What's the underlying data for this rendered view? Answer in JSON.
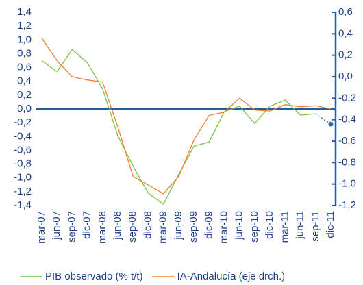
{
  "chart_data": {
    "type": "line",
    "categories": [
      "mar-07",
      "jun-07",
      "sep-07",
      "dic-07",
      "mar-08",
      "jun-08",
      "sep-08",
      "dic-08",
      "mar-09",
      "jun-09",
      "sep-09",
      "dic-09",
      "mar-10",
      "jun-10",
      "sep-10",
      "dic-10",
      "mar-11",
      "jun-11",
      "sep-11",
      "dic-11"
    ],
    "series": [
      {
        "name": "PIB observado (% t/t)",
        "color": "#7cc242",
        "values": [
          0.7,
          0.54,
          0.86,
          0.67,
          0.29,
          -0.39,
          -0.83,
          -1.22,
          -1.38,
          -0.95,
          -0.54,
          -0.48,
          -0.04,
          0.04,
          -0.21,
          0.04,
          0.13,
          -0.09,
          -0.07,
          null
        ]
      },
      {
        "name": "IA-Andalucía (eje drch.)",
        "color": "#f07f2f",
        "axis": "y2",
        "values": [
          0.36,
          0.15,
          0.0,
          -0.03,
          -0.05,
          -0.47,
          -0.93,
          -1.01,
          -1.09,
          -0.93,
          -0.59,
          -0.36,
          -0.33,
          -0.2,
          -0.31,
          -0.32,
          -0.26,
          -0.28,
          -0.27,
          -0.3
        ]
      },
      {
        "color": "#1e6fb5",
        "dashed": true,
        "values": [
          null,
          null,
          null,
          null,
          null,
          null,
          null,
          null,
          null,
          null,
          null,
          null,
          null,
          null,
          null,
          null,
          null,
          null,
          -0.07,
          -0.22
        ]
      }
    ],
    "ylim": [
      -1.4,
      1.4
    ],
    "yticks": [
      {
        "value": 1.4,
        "label": "1,4"
      },
      {
        "value": 1.2,
        "label": "1,2"
      },
      {
        "value": 1.0,
        "label": "1,0"
      },
      {
        "value": 0.8,
        "label": "0,8"
      },
      {
        "value": 0.6,
        "label": "0,6"
      },
      {
        "value": 0.4,
        "label": "0,4"
      },
      {
        "value": 0.2,
        "label": "0,2"
      },
      {
        "value": 0,
        "label": "0,0"
      },
      {
        "value": -0.2,
        "label": "-0,2"
      },
      {
        "value": -0.4,
        "label": "-0,4"
      },
      {
        "value": -0.6,
        "label": "-0,6"
      },
      {
        "value": -0.8,
        "label": "-0,8"
      },
      {
        "value": -1.0,
        "label": "-1,0"
      },
      {
        "value": -1.2,
        "label": "-1,2"
      },
      {
        "value": -1.4,
        "label": "-1,4"
      }
    ],
    "y2lim": [
      -1.2,
      0.6
    ],
    "y2ticks": [
      {
        "value": 0.6,
        "label": "0,6"
      },
      {
        "value": 0.4,
        "label": "0,4"
      },
      {
        "value": 0.2,
        "label": "0,2"
      },
      {
        "value": 0,
        "label": "0,0"
      },
      {
        "value": -0.2,
        "label": "-0,2"
      },
      {
        "value": -0.4,
        "label": "-0,4"
      },
      {
        "value": -0.6,
        "label": "-0,6"
      },
      {
        "value": -0.8,
        "label": "-0,8"
      },
      {
        "value": -1.0,
        "label": "-1,0"
      },
      {
        "value": -1.2,
        "label": "-1,2"
      }
    ],
    "axis_color": "#1d5fa8"
  }
}
